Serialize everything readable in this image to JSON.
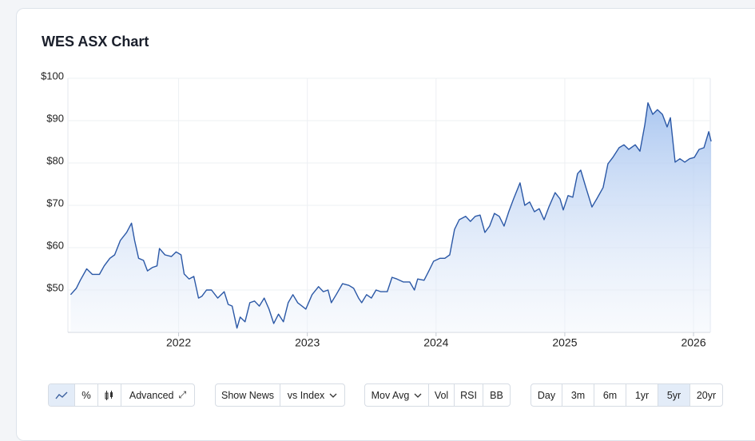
{
  "header": {
    "title": "WES ASX Chart"
  },
  "chart_data": {
    "type": "area",
    "color": "#2b58a6",
    "grid": true,
    "xlim": [
      2021.14,
      2026.13
    ],
    "xticks": [
      2022,
      2023,
      2024,
      2025,
      2026
    ],
    "ylim": [
      40,
      100
    ],
    "yticks": [
      {
        "value": 50,
        "label": "$50"
      },
      {
        "value": 60,
        "label": "$60"
      },
      {
        "value": 70,
        "label": "$70"
      },
      {
        "value": 80,
        "label": "$80"
      },
      {
        "value": 90,
        "label": "$90"
      },
      {
        "value": 100,
        "label": "$100"
      }
    ],
    "x": [
      2021.161,
      2021.205,
      2021.236,
      2021.286,
      2021.329,
      2021.385,
      2021.422,
      2021.466,
      2021.503,
      2021.547,
      2021.596,
      2021.634,
      2021.658,
      2021.689,
      2021.727,
      2021.758,
      2021.795,
      2021.832,
      2021.851,
      2021.894,
      2021.944,
      2021.981,
      2022.019,
      2022.043,
      2022.081,
      2022.118,
      2022.155,
      2022.18,
      2022.217,
      2022.255,
      2022.304,
      2022.354,
      2022.385,
      2022.416,
      2022.453,
      2022.478,
      2022.516,
      2022.553,
      2022.59,
      2022.627,
      2022.665,
      2022.702,
      2022.739,
      2022.776,
      2022.814,
      2022.851,
      2022.888,
      2022.925,
      2022.988,
      2023.037,
      2023.087,
      2023.124,
      2023.161,
      2023.186,
      2023.224,
      2023.273,
      2023.323,
      2023.36,
      2023.398,
      2023.422,
      2023.46,
      2023.497,
      2023.534,
      2023.571,
      2023.621,
      2023.658,
      2023.696,
      2023.745,
      2023.795,
      2023.832,
      2023.857,
      2023.907,
      2023.944,
      2023.981,
      2024.031,
      2024.068,
      2024.106,
      2024.143,
      2024.18,
      2024.23,
      2024.267,
      2024.304,
      2024.342,
      2024.379,
      2024.416,
      2024.453,
      2024.491,
      2024.528,
      2024.565,
      2024.602,
      2024.652,
      2024.689,
      2024.727,
      2024.764,
      2024.801,
      2024.839,
      2024.876,
      2024.925,
      2024.963,
      2024.988,
      2025.025,
      2025.062,
      2025.099,
      2025.124,
      2025.161,
      2025.211,
      2025.248,
      2025.298,
      2025.335,
      2025.373,
      2025.422,
      2025.46,
      2025.497,
      2025.547,
      2025.584,
      2025.621,
      2025.646,
      2025.683,
      2025.72,
      2025.758,
      2025.795,
      2025.82,
      2025.857,
      2025.894,
      2025.932,
      2025.969,
      2026.006,
      2026.043,
      2026.081,
      2026.118,
      2026.137
    ],
    "values": [
      48.9,
      50.4,
      52.3,
      55,
      53.7,
      53.7,
      55.7,
      57.5,
      58.3,
      61.7,
      63.6,
      65.8,
      61.7,
      57.5,
      57,
      54.5,
      55.3,
      55.7,
      59.8,
      58.3,
      57.9,
      59,
      58.3,
      53.8,
      52.6,
      53.2,
      48.1,
      48.5,
      50,
      50,
      48.1,
      49.6,
      46.6,
      46.2,
      41,
      43.6,
      42.5,
      47,
      47.4,
      46.2,
      48.1,
      45.5,
      42.1,
      44.3,
      42.5,
      47,
      48.9,
      47,
      45.5,
      48.9,
      50.8,
      49.6,
      50,
      47,
      48.9,
      51.5,
      51.1,
      50.4,
      48.1,
      47,
      48.9,
      48.1,
      50,
      49.6,
      49.6,
      53,
      52.6,
      51.9,
      51.9,
      50,
      52.6,
      52.3,
      54.5,
      56.8,
      57.5,
      57.5,
      58.3,
      64.3,
      66.6,
      67.4,
      66.2,
      67.4,
      67.7,
      63.6,
      65.1,
      68.1,
      67.4,
      65.1,
      68.5,
      71.5,
      75.3,
      70,
      70.8,
      68.5,
      69.2,
      66.6,
      69.6,
      73,
      71.5,
      68.9,
      72.3,
      71.9,
      77.5,
      78.3,
      74.5,
      69.6,
      71.5,
      74.2,
      79.8,
      81.3,
      83.6,
      84.3,
      83.2,
      84.3,
      82.8,
      88.9,
      94.2,
      91.5,
      92.6,
      91.5,
      88.5,
      90.7,
      80.2,
      81,
      80.2,
      81,
      81.3,
      83.2,
      83.6,
      87.4,
      85.1
    ]
  },
  "controls": {
    "chart_style": [
      "Advanced"
    ],
    "overlays": [
      "Show News",
      "vs Index"
    ],
    "indicators": [
      "Mov Avg",
      "Vol",
      "RSI",
      "BB"
    ],
    "ranges": [
      "Day",
      "3m",
      "6m",
      "1yr",
      "5yr",
      "20yr"
    ]
  }
}
